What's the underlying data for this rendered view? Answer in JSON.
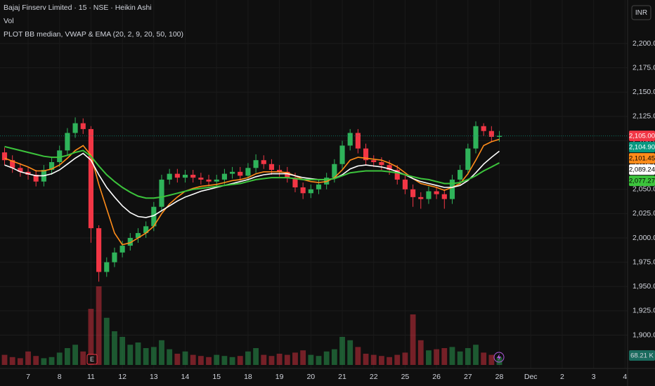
{
  "chart_data": {
    "type": "candlestick",
    "title": "Bajaj Finserv Limited · 15 · NSE · Heikin Ashi",
    "volume_title": "Vol",
    "indicator_title": "PLOT BB median, VWAP & EMA (20, 2, 9, 20, 50, 100)",
    "currency": "INR",
    "event_marker": "E",
    "up_color": "#2fb35a",
    "down_color": "#f23645",
    "categories": [
      null,
      null,
      null,
      "7",
      null,
      null,
      null,
      "8",
      null,
      null,
      null,
      "11",
      null,
      null,
      null,
      "12",
      null,
      null,
      null,
      "13",
      null,
      null,
      null,
      "14",
      null,
      null,
      null,
      "15",
      null,
      null,
      null,
      "18",
      null,
      null,
      null,
      "19",
      null,
      null,
      null,
      "20",
      null,
      null,
      null,
      "21",
      null,
      null,
      null,
      "22",
      null,
      null,
      null,
      "25",
      null,
      null,
      null,
      "26",
      null,
      null,
      null,
      "27",
      null,
      null,
      null,
      "28",
      null,
      null,
      null,
      "Dec",
      null,
      null,
      null,
      "2",
      null,
      null,
      null,
      "3",
      null,
      null,
      null,
      "4"
    ],
    "open": [
      2088,
      2080,
      2072,
      2068,
      2065,
      2058,
      2070,
      2078,
      2090,
      2108,
      2118,
      2112,
      2010,
      1965,
      1975,
      1985,
      1992,
      2000,
      2005,
      2012,
      2032,
      2060,
      2066,
      2062,
      2065,
      2062,
      2060,
      2058,
      2060,
      2066,
      2068,
      2064,
      2072,
      2080,
      2076,
      2070,
      2068,
      2062,
      2052,
      2046,
      2050,
      2055,
      2062,
      2076,
      2095,
      2108,
      2092,
      2080,
      2078,
      2075,
      2070,
      2060,
      2050,
      2042,
      2040,
      2048,
      2045,
      2040,
      2060,
      2070,
      2092,
      2115,
      2110,
      2104,
      null,
      null,
      null,
      null,
      null,
      null,
      null,
      null,
      null,
      null,
      null,
      null,
      null,
      null,
      null,
      null
    ],
    "high": [
      2093,
      2085,
      2077,
      2073,
      2070,
      2075,
      2083,
      2095,
      2113,
      2124,
      2123,
      2115,
      2013,
      1980,
      1990,
      1997,
      2005,
      2010,
      2017,
      2037,
      2065,
      2071,
      2071,
      2070,
      2070,
      2067,
      2065,
      2065,
      2071,
      2073,
      2073,
      2077,
      2086,
      2085,
      2081,
      2075,
      2073,
      2067,
      2057,
      2055,
      2060,
      2067,
      2081,
      2100,
      2112,
      2112,
      2097,
      2085,
      2083,
      2080,
      2075,
      2065,
      2055,
      2047,
      2053,
      2053,
      2050,
      2065,
      2075,
      2097,
      2120,
      2118,
      2115,
      2110,
      null,
      null,
      null,
      null,
      null,
      null,
      null,
      null,
      null,
      null,
      null,
      null,
      null,
      null,
      null,
      null
    ],
    "low": [
      2075,
      2067,
      2063,
      2060,
      2053,
      2053,
      2065,
      2073,
      2085,
      2103,
      2107,
      1995,
      1955,
      1960,
      1970,
      1980,
      1987,
      1995,
      2000,
      2007,
      2027,
      2055,
      2057,
      2057,
      2057,
      2055,
      2053,
      2053,
      2055,
      2061,
      2059,
      2059,
      2067,
      2071,
      2065,
      2063,
      2057,
      2047,
      2040,
      2041,
      2045,
      2050,
      2057,
      2071,
      2090,
      2087,
      2075,
      2073,
      2070,
      2065,
      2055,
      2045,
      2032,
      2030,
      2035,
      2040,
      2030,
      2035,
      2055,
      2065,
      2087,
      2105,
      2099,
      2099,
      null,
      null,
      null,
      null,
      null,
      null,
      null,
      null,
      null,
      null,
      null,
      null,
      null,
      null,
      null,
      null
    ],
    "close": [
      2080,
      2072,
      2068,
      2065,
      2058,
      2070,
      2078,
      2090,
      2108,
      2118,
      2112,
      2010,
      1965,
      1975,
      1985,
      1992,
      2000,
      2005,
      2012,
      2032,
      2060,
      2066,
      2062,
      2065,
      2062,
      2060,
      2058,
      2060,
      2066,
      2068,
      2064,
      2072,
      2080,
      2076,
      2070,
      2068,
      2062,
      2052,
      2046,
      2050,
      2055,
      2062,
      2076,
      2095,
      2108,
      2092,
      2080,
      2078,
      2075,
      2070,
      2060,
      2050,
      2042,
      2040,
      2048,
      2045,
      2040,
      2060,
      2070,
      2092,
      2115,
      2110,
      2104,
      2105,
      null,
      null,
      null,
      null,
      null,
      null,
      null,
      null,
      null,
      null,
      null,
      null,
      null,
      null,
      null,
      null
    ],
    "volume": [
      90,
      70,
      60,
      120,
      80,
      60,
      70,
      110,
      150,
      180,
      120,
      500,
      700,
      420,
      300,
      250,
      180,
      200,
      150,
      160,
      220,
      140,
      100,
      120,
      90,
      80,
      70,
      90,
      80,
      70,
      80,
      120,
      150,
      90,
      80,
      100,
      90,
      110,
      130,
      90,
      80,
      120,
      140,
      250,
      220,
      160,
      100,
      90,
      80,
      70,
      90,
      110,
      450,
      220,
      130,
      140,
      150,
      160,
      120,
      150,
      180,
      110,
      90,
      68.21,
      null,
      null,
      null,
      null,
      null,
      null,
      null,
      null,
      null,
      null,
      null,
      null,
      null,
      null,
      null,
      null
    ],
    "volume_badge": {
      "value": 68.21,
      "label": "68.21 K"
    },
    "series": [
      {
        "name": "EMA",
        "color": "#ff8c1a",
        "values": [
          2082,
          2079,
          2076,
          2073,
          2069,
          2069,
          2071,
          2075,
          2082,
          2090,
          2095,
          2085,
          2055,
          2030,
          2005,
          1993,
          1995,
          2000,
          2005,
          2012,
          2025,
          2035,
          2042,
          2048,
          2051,
          2053,
          2054,
          2055,
          2057,
          2059,
          2060,
          2062,
          2066,
          2068,
          2068,
          2068,
          2067,
          2064,
          2060,
          2058,
          2057,
          2058,
          2062,
          2070,
          2080,
          2083,
          2082,
          2081,
          2080,
          2077,
          2073,
          2067,
          2061,
          2056,
          2054,
          2052,
          2049,
          2052,
          2056,
          2066,
          2080,
          2095,
          2099,
          2101.45,
          null,
          null,
          null,
          null,
          null,
          null,
          null,
          null,
          null,
          null,
          null,
          null,
          null,
          null,
          null,
          null
        ]
      },
      {
        "name": "VWAP",
        "color": "#ffffff",
        "values": [
          2075,
          2072,
          2068,
          2066,
          2064,
          2064,
          2066,
          2070,
          2076,
          2082,
          2087,
          2080,
          2065,
          2052,
          2042,
          2033,
          2026,
          2022,
          2021,
          2023,
          2028,
          2033,
          2038,
          2042,
          2045,
          2048,
          2050,
          2052,
          2054,
          2056,
          2058,
          2060,
          2063,
          2065,
          2066,
          2066,
          2066,
          2064,
          2062,
          2061,
          2060,
          2060,
          2061,
          2065,
          2071,
          2074,
          2075,
          2074,
          2073,
          2071,
          2068,
          2065,
          2061,
          2058,
          2056,
          2054,
          2052,
          2052,
          2054,
          2059,
          2067,
          2076,
          2083,
          2089.24,
          null,
          null,
          null,
          null,
          null,
          null,
          null,
          null,
          null,
          null,
          null,
          null,
          null,
          null,
          null,
          null
        ]
      },
      {
        "name": "EMA slow",
        "color": "#3cc43c",
        "values": [
          2094,
          2092,
          2090,
          2088,
          2086,
          2084,
          2083,
          2083,
          2085,
          2088,
          2090,
          2084,
          2074,
          2065,
          2058,
          2052,
          2047,
          2043,
          2041,
          2041,
          2042,
          2044,
          2046,
          2048,
          2050,
          2051,
          2052,
          2053,
          2054,
          2055,
          2056,
          2058,
          2060,
          2061,
          2062,
          2062,
          2062,
          2061,
          2060,
          2060,
          2060,
          2060,
          2061,
          2064,
          2067,
          2068,
          2069,
          2069,
          2069,
          2068,
          2067,
          2065,
          2063,
          2061,
          2060,
          2058,
          2056,
          2056,
          2057,
          2060,
          2064,
          2069,
          2073,
          2077.27,
          null,
          null,
          null,
          null,
          null,
          null,
          null,
          null,
          null,
          null,
          null,
          null,
          null,
          null,
          null,
          null
        ]
      }
    ],
    "price_badges": [
      {
        "value": 2105.0,
        "label": "2,105.00",
        "color": "#f23645"
      },
      {
        "value": 2104.9,
        "label": "2,104.90",
        "color": "#089981"
      },
      {
        "value": 2101.45,
        "label": "2,101.45",
        "color": "#ff8c1a"
      },
      {
        "value": 2089.24,
        "label": "2,089.24",
        "color": "#ffffff"
      },
      {
        "value": 2077.27,
        "label": "2,077.27",
        "color": "#3cc43c"
      }
    ],
    "ylim": [
      1869.3,
      2244.8
    ],
    "yticks": [
      {
        "value": 1900,
        "label": "1,900.00"
      },
      {
        "value": 1925,
        "label": "1,925.00"
      },
      {
        "value": 1950,
        "label": "1,950.00"
      },
      {
        "value": 1975,
        "label": "1,975.00"
      },
      {
        "value": 2000,
        "label": "2,000.00"
      },
      {
        "value": 2025,
        "label": "2,025.00"
      },
      {
        "value": 2050,
        "label": "2,050.00"
      },
      {
        "value": 2075,
        "label": "2,075.00"
      },
      {
        "value": 2100,
        "label": "2,100.00"
      },
      {
        "value": 2125,
        "label": "2,125.00"
      },
      {
        "value": 2150,
        "label": "2,150.00"
      },
      {
        "value": 2175,
        "label": "2,175.00"
      },
      {
        "value": 2200,
        "label": "2,200.00"
      }
    ],
    "grid": true
  }
}
